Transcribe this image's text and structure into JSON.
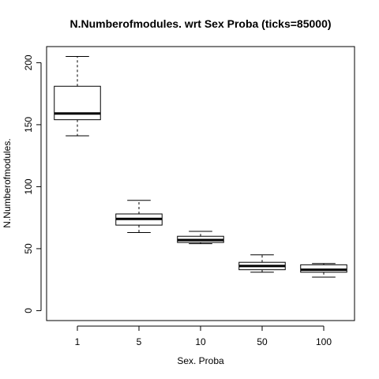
{
  "chart_data": {
    "type": "box",
    "title": "N.Numberofmodules. wrt Sex Proba (ticks=85000)",
    "xlabel": "Sex. Proba",
    "ylabel": "N.Numberofmodules.",
    "categories": [
      "1",
      "5",
      "10",
      "50",
      "100"
    ],
    "boxes": [
      {
        "category": "1",
        "min": 141,
        "q1": 154,
        "median": 159,
        "q3": 181,
        "max": 205
      },
      {
        "category": "5",
        "min": 63,
        "q1": 69,
        "median": 74,
        "q3": 78,
        "max": 89
      },
      {
        "category": "10",
        "min": 54,
        "q1": 55,
        "median": 57,
        "q3": 60,
        "max": 64
      },
      {
        "category": "50",
        "min": 31,
        "q1": 33,
        "median": 36,
        "q3": 39,
        "max": 45
      },
      {
        "category": "100",
        "min": 27,
        "q1": 31,
        "median": 33,
        "q3": 37,
        "max": 38
      }
    ],
    "yticks": [
      0,
      50,
      100,
      150,
      200
    ],
    "ylim": [
      -8,
      213
    ],
    "grid": false,
    "legend": "none"
  }
}
